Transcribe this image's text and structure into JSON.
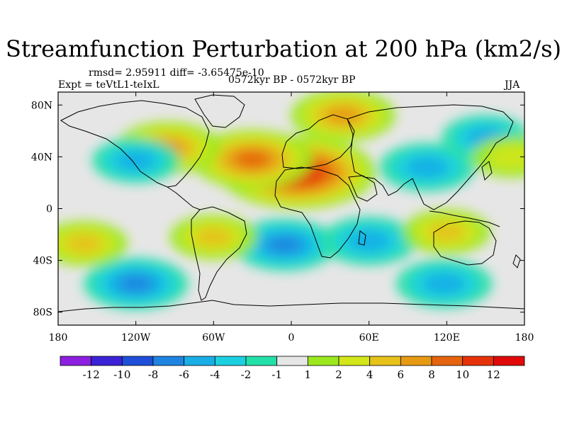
{
  "chart": {
    "title": "Streamfunction Perturbation at 200 hPa (km2/s)",
    "stats": "rmsd= 2.95911  diff= -3.65475e-10",
    "expt": "Expt = teVtL1-teIxL",
    "period": "0572kyr BP - 0572kyr BP",
    "season": "JJA"
  },
  "chart_data": {
    "type": "heatmap",
    "title": "Streamfunction Perturbation at 200 hPa (km2/s)",
    "units": "km2/s",
    "x_axis": {
      "range": [
        -180,
        180
      ],
      "ticks": [
        -180,
        -120,
        -60,
        0,
        60,
        120,
        180
      ],
      "tick_labels": [
        "180",
        "120W",
        "60W",
        "0",
        "60E",
        "120E",
        "180"
      ]
    },
    "y_axis": {
      "range": [
        -90,
        90
      ],
      "ticks": [
        80,
        40,
        0,
        -40,
        -80
      ],
      "tick_labels": [
        "80N",
        "40N",
        "0",
        "40S",
        "80S"
      ]
    },
    "colorbar": {
      "labels": [
        "-12",
        "-10",
        "-8",
        "-6",
        "-4",
        "-2",
        "-1",
        "1",
        "2",
        "4",
        "6",
        "8",
        "10",
        "12"
      ],
      "colors": [
        "#8c1fe0",
        "#3b22d6",
        "#1f4fd9",
        "#1e84e0",
        "#19aee6",
        "#1cd0e0",
        "#22e0a8",
        "#e6e6e6",
        "#9be81f",
        "#d2e61a",
        "#e6c21a",
        "#e69a14",
        "#e6640f",
        "#e6320a",
        "#e00a0a"
      ]
    },
    "features": [
      {
        "lon": 5,
        "lat": 28,
        "value": 12
      },
      {
        "lon": -30,
        "lat": 38,
        "value": 8
      },
      {
        "lon": 40,
        "lat": 72,
        "value": 6
      },
      {
        "lon": -95,
        "lat": 47,
        "value": 6
      },
      {
        "lon": 105,
        "lat": 32,
        "value": -5
      },
      {
        "lon": 150,
        "lat": 55,
        "value": -4
      },
      {
        "lon": -120,
        "lat": 37,
        "value": -4
      },
      {
        "lon": -5,
        "lat": -28,
        "value": -6
      },
      {
        "lon": 60,
        "lat": -25,
        "value": -5
      },
      {
        "lon": -120,
        "lat": -58,
        "value": -6
      },
      {
        "lon": 118,
        "lat": -58,
        "value": -5
      },
      {
        "lon": -160,
        "lat": -27,
        "value": 4
      },
      {
        "lon": -60,
        "lat": -22,
        "value": 4
      },
      {
        "lon": 120,
        "lat": -18,
        "value": 4
      },
      {
        "lon": 170,
        "lat": 40,
        "value": 3
      }
    ]
  }
}
